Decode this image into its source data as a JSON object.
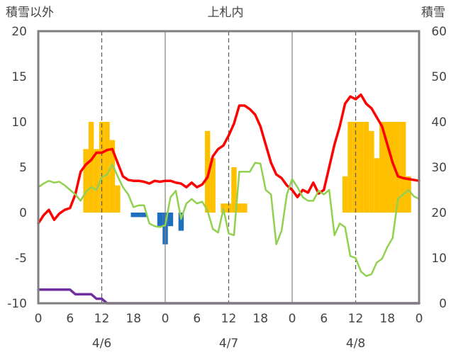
{
  "chart_data": {
    "type": "bar",
    "title": "上札内",
    "ylabel_left": "積雪以外",
    "ylabel_right": "積雪",
    "ylim_left": [
      -10,
      20
    ],
    "ylim_right": [
      0,
      60
    ],
    "yticks_left": [
      "-10",
      "-5",
      "0",
      "5",
      "10",
      "15",
      "20"
    ],
    "yticks_right": [
      "0",
      "10",
      "20",
      "30",
      "40",
      "50",
      "60"
    ],
    "x_range_hours": [
      0,
      72
    ],
    "xtick_labels": [
      "0",
      "6",
      "12",
      "18",
      "0",
      "6",
      "12",
      "18",
      "0",
      "6",
      "12",
      "18",
      "0"
    ],
    "date_labels": [
      {
        "label": "4/6",
        "hour": 12
      },
      {
        "label": "4/7",
        "hour": 36
      },
      {
        "label": "4/8",
        "hour": 60
      }
    ],
    "day_lines_hours": [
      24,
      48
    ],
    "noon_lines_hours": [
      12,
      36,
      60
    ],
    "grid": false,
    "colors": {
      "precip_positive": "#ffc000",
      "precip_negative": "#1f6fbf",
      "red_series": "#ff0000",
      "green_series": "#92d050",
      "snow_depth": "#7030a0",
      "frame": "#7f7f7f",
      "dash": "#595959"
    },
    "bars": {
      "hours": [
        9,
        10,
        11,
        12,
        13,
        14,
        15,
        16,
        17,
        18,
        19,
        20,
        21,
        22,
        23,
        24,
        25,
        26,
        27,
        28,
        29,
        30,
        31,
        32,
        33,
        34,
        35,
        36,
        37,
        38,
        39,
        40,
        41,
        42,
        43,
        44,
        45,
        46,
        47,
        48,
        49,
        50,
        51,
        52,
        53,
        54,
        55,
        56,
        57,
        58,
        59,
        60,
        61,
        62,
        63,
        64,
        65,
        66,
        67,
        68,
        69,
        70,
        71
      ],
      "values": [
        7,
        10,
        7,
        10,
        10,
        8,
        3,
        0,
        0,
        -0.5,
        -0.5,
        -0.5,
        0,
        0,
        -1.5,
        -3.5,
        -1.5,
        0,
        -2,
        0,
        0,
        0,
        0,
        9,
        6,
        0,
        1,
        1,
        5,
        1,
        1,
        0,
        0,
        0,
        0,
        0,
        0,
        0,
        0,
        0,
        0,
        0,
        0,
        0,
        0,
        0,
        0,
        0,
        0,
        4,
        10,
        10,
        10,
        10,
        9,
        6,
        10,
        10,
        10,
        10,
        10,
        4,
        0
      ]
    },
    "series": [
      {
        "hours": [
          0,
          1,
          2,
          3,
          4,
          5,
          6,
          7,
          8,
          9,
          10,
          11,
          12,
          13,
          14,
          15,
          16,
          17,
          18,
          19,
          20,
          21,
          22,
          23,
          24,
          25,
          26,
          27,
          28,
          29,
          30,
          31,
          32,
          33,
          34,
          35,
          36,
          37,
          38,
          39,
          40,
          41,
          42,
          43,
          44,
          45,
          46,
          47,
          48,
          49,
          50,
          51,
          52,
          53,
          54,
          55,
          56,
          57,
          58,
          59,
          60,
          61,
          62,
          63,
          64,
          65,
          66,
          67,
          68,
          69,
          70,
          71,
          72
        ],
        "values": [
          -1.2,
          -0.3,
          0.3,
          -0.8,
          -0.1,
          0.3,
          0.5,
          2.0,
          4.5,
          5.3,
          5.8,
          6.6,
          6.6,
          6.9,
          7.0,
          5.5,
          4.0,
          3.6,
          3.5,
          3.5,
          3.4,
          3.2,
          3.5,
          3.4,
          3.5,
          3.5,
          3.3,
          3.2,
          2.8,
          3.3,
          2.8,
          3.1,
          3.9,
          6.2,
          7.0,
          7.4,
          8.5,
          9.8,
          11.8,
          11.8,
          11.4,
          10.8,
          9.5,
          7.5,
          5.5,
          4.2,
          3.8,
          3.0,
          2.5,
          1.7,
          2.5,
          2.2,
          3.3,
          2.1,
          2.5,
          5.0,
          7.5,
          9.5,
          12.0,
          12.8,
          12.5,
          13.0,
          12.0,
          11.5,
          10.5,
          9.5,
          7.5,
          5.5,
          4.0,
          3.8,
          3.7,
          3.6,
          3.5
        ]
      },
      {
        "hours": [
          0,
          1,
          2,
          3,
          4,
          5,
          6,
          7,
          8,
          9,
          10,
          11,
          12,
          13,
          14,
          15,
          16,
          17,
          18,
          19,
          20,
          21,
          22,
          23,
          24,
          25,
          26,
          27,
          28,
          29,
          30,
          31,
          32,
          33,
          34,
          35,
          36,
          37,
          38,
          39,
          40,
          41,
          42,
          43,
          44,
          45,
          46,
          47,
          48,
          49,
          50,
          51,
          52,
          53,
          54,
          55,
          56,
          57,
          58,
          59,
          60,
          61,
          62,
          63,
          64,
          65,
          66,
          67,
          68,
          69,
          70,
          71,
          72
        ],
        "values": [
          2.8,
          3.2,
          3.5,
          3.3,
          3.4,
          3.0,
          2.5,
          2.0,
          1.3,
          2.3,
          2.8,
          2.5,
          3.9,
          4.2,
          5.3,
          4.0,
          2.8,
          2.0,
          0.6,
          0.8,
          0.8,
          -1.2,
          -1.5,
          -1.6,
          -1.4,
          1.7,
          2.4,
          -0.7,
          1.0,
          1.5,
          1.0,
          1.2,
          0.2,
          -1.8,
          -2.2,
          0.4,
          -2.3,
          -2.5,
          4.5,
          4.5,
          4.5,
          5.5,
          5.4,
          2.5,
          2.0,
          -3.5,
          -2.0,
          2.0,
          3.7,
          2.8,
          1.7,
          1.3,
          1.3,
          2.4,
          2.0,
          2.5,
          -2.5,
          -1.2,
          -1.6,
          -4.8,
          -5.0,
          -6.5,
          -7.0,
          -6.8,
          -5.5,
          -5.1,
          -3.8,
          -2.8,
          1.5,
          2.0,
          2.5,
          1.8,
          1.5
        ]
      },
      {
        "hours": [
          0,
          6,
          7,
          10,
          11,
          12,
          13,
          72
        ],
        "values": [
          -8.5,
          -8.5,
          -9.0,
          -9.0,
          -9.5,
          -9.5,
          -10,
          -10
        ]
      }
    ]
  }
}
